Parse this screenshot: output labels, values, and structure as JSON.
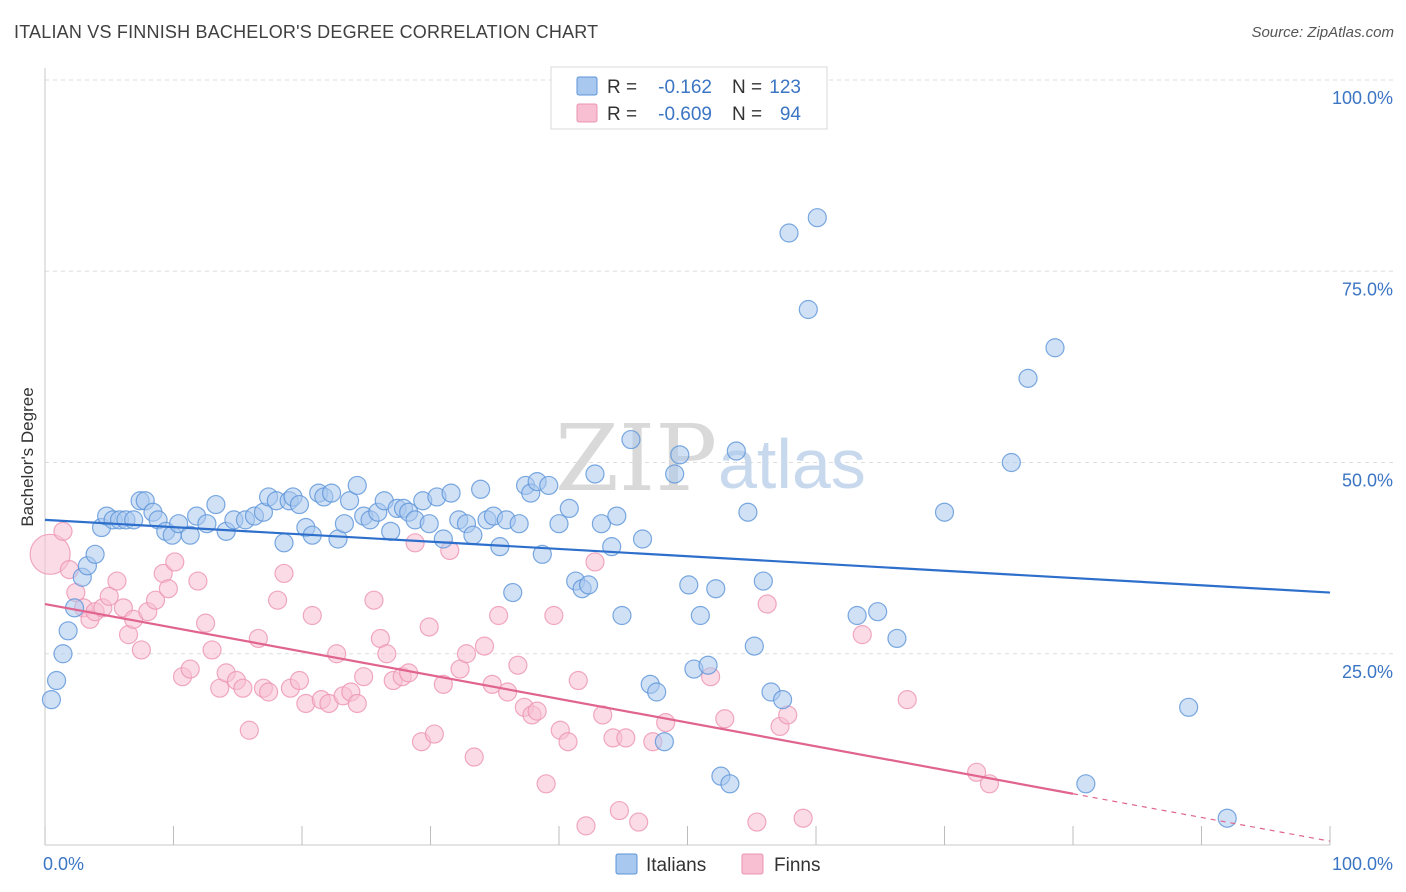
{
  "title": "ITALIAN VS FINNISH BACHELOR'S DEGREE CORRELATION CHART",
  "source": "Source: ZipAtlas.com",
  "watermark": {
    "zip": "ZIP",
    "atlas": "atlas"
  },
  "legend": {
    "rows": [
      {
        "r_label": "R =",
        "r_value": "-0.162",
        "n_label": "N =",
        "n_value": "123"
      },
      {
        "r_label": "R =",
        "r_value": "-0.609",
        "n_label": "N =",
        "n_value": "94"
      }
    ]
  },
  "bottom_legend": [
    "Italians",
    "Finns"
  ],
  "colors": {
    "italians_fill": "#a9c8ef",
    "italians_stroke": "#5b93d8",
    "italians_line": "#2e6fcc",
    "finns_fill": "#f7bfd1",
    "finns_stroke": "#ec93b2",
    "finns_line": "#e0648f",
    "grid": "#dddddd",
    "tick_label": "#3b75c4"
  },
  "chart_data": {
    "type": "scatter",
    "xlabel": "",
    "ylabel": "Bachelor's Degree",
    "xlim": [
      0,
      100
    ],
    "ylim": [
      0,
      100
    ],
    "x_tick_labels": [
      "0.0%",
      "100.0%"
    ],
    "y_tick_labels": [
      "100.0%",
      "75.0%",
      "50.0%",
      "25.0%"
    ],
    "y_ticks": [
      100,
      75,
      50,
      25
    ],
    "grid": true,
    "legend_position": "top-center",
    "series": [
      {
        "name": "Italians",
        "R": -0.162,
        "N": 123,
        "trend": {
          "x": [
            0,
            100
          ],
          "y": [
            42.5,
            33.0
          ],
          "dashed_from": null
        },
        "points": [
          [
            0.5,
            19
          ],
          [
            0.9,
            21.5
          ],
          [
            1.4,
            25
          ],
          [
            1.8,
            28
          ],
          [
            2.3,
            31
          ],
          [
            2.9,
            35
          ],
          [
            3.3,
            36.5
          ],
          [
            3.9,
            38
          ],
          [
            4.4,
            41.5
          ],
          [
            4.8,
            43
          ],
          [
            5.3,
            42.5
          ],
          [
            5.8,
            42.5
          ],
          [
            6.3,
            42.5
          ],
          [
            6.9,
            42.5
          ],
          [
            7.4,
            45
          ],
          [
            7.8,
            45
          ],
          [
            8.4,
            43.5
          ],
          [
            8.8,
            42.5
          ],
          [
            9.4,
            41
          ],
          [
            9.9,
            40.5
          ],
          [
            10.4,
            42
          ],
          [
            11.3,
            40.5
          ],
          [
            11.8,
            43
          ],
          [
            12.6,
            42
          ],
          [
            13.3,
            44.5
          ],
          [
            14.1,
            41
          ],
          [
            14.7,
            42.5
          ],
          [
            15.6,
            42.5
          ],
          [
            16.3,
            43
          ],
          [
            17.0,
            43.5
          ],
          [
            17.4,
            45.5
          ],
          [
            18.0,
            45
          ],
          [
            18.6,
            39.5
          ],
          [
            19.0,
            45
          ],
          [
            19.3,
            45.5
          ],
          [
            19.8,
            44.5
          ],
          [
            20.3,
            41.5
          ],
          [
            20.8,
            40.5
          ],
          [
            21.3,
            46
          ],
          [
            21.7,
            45.5
          ],
          [
            22.3,
            46
          ],
          [
            22.8,
            40
          ],
          [
            23.3,
            42
          ],
          [
            23.7,
            45
          ],
          [
            24.3,
            47
          ],
          [
            24.8,
            43
          ],
          [
            25.3,
            42.5
          ],
          [
            25.9,
            43.5
          ],
          [
            26.4,
            45
          ],
          [
            26.9,
            41
          ],
          [
            27.4,
            44
          ],
          [
            27.9,
            44
          ],
          [
            28.3,
            43.5
          ],
          [
            28.8,
            42.5
          ],
          [
            29.4,
            45
          ],
          [
            29.9,
            42
          ],
          [
            30.5,
            45.5
          ],
          [
            31.0,
            40
          ],
          [
            31.6,
            46
          ],
          [
            32.2,
            42.5
          ],
          [
            32.8,
            42
          ],
          [
            33.3,
            40.5
          ],
          [
            33.9,
            46.5
          ],
          [
            34.4,
            42.5
          ],
          [
            34.9,
            43
          ],
          [
            35.4,
            39
          ],
          [
            35.9,
            42.5
          ],
          [
            36.4,
            33
          ],
          [
            36.9,
            42
          ],
          [
            37.4,
            47
          ],
          [
            37.8,
            46
          ],
          [
            38.3,
            47.5
          ],
          [
            38.7,
            38
          ],
          [
            39.2,
            47
          ],
          [
            40.0,
            42
          ],
          [
            40.8,
            44
          ],
          [
            41.3,
            34.5
          ],
          [
            41.8,
            33.5
          ],
          [
            42.3,
            34
          ],
          [
            42.8,
            48.5
          ],
          [
            43.3,
            42
          ],
          [
            44.1,
            39
          ],
          [
            44.5,
            43
          ],
          [
            44.9,
            30
          ],
          [
            45.6,
            53
          ],
          [
            46.5,
            40
          ],
          [
            47.1,
            21
          ],
          [
            47.6,
            20
          ],
          [
            48.2,
            13.5
          ],
          [
            49.0,
            48.5
          ],
          [
            49.4,
            51
          ],
          [
            50.1,
            34
          ],
          [
            50.5,
            23
          ],
          [
            51.0,
            30
          ],
          [
            51.6,
            23.5
          ],
          [
            52.2,
            33.5
          ],
          [
            52.6,
            9
          ],
          [
            53.3,
            8
          ],
          [
            53.8,
            51.5
          ],
          [
            54.7,
            43.5
          ],
          [
            55.2,
            26
          ],
          [
            55.9,
            34.5
          ],
          [
            56.5,
            20
          ],
          [
            57.4,
            19
          ],
          [
            57.9,
            80
          ],
          [
            59.4,
            70
          ],
          [
            60.1,
            82
          ],
          [
            63.2,
            30
          ],
          [
            64.8,
            30.5
          ],
          [
            66.3,
            27
          ],
          [
            70.0,
            43.5
          ],
          [
            75.2,
            50
          ],
          [
            76.5,
            61
          ],
          [
            78.6,
            65
          ],
          [
            81.0,
            8
          ],
          [
            89.0,
            18
          ],
          [
            92.0,
            3.5
          ]
        ]
      },
      {
        "name": "Finns",
        "R": -0.609,
        "N": 94,
        "trend": {
          "x": [
            0,
            100
          ],
          "y": [
            31.5,
            0.5
          ],
          "dashed_from": 80
        },
        "points": [
          [
            0.4,
            38
          ],
          [
            1.4,
            41
          ],
          [
            1.9,
            36
          ],
          [
            2.4,
            33
          ],
          [
            3.0,
            31
          ],
          [
            3.5,
            29.5
          ],
          [
            3.9,
            30.5
          ],
          [
            4.5,
            31
          ],
          [
            5.0,
            32.5
          ],
          [
            5.6,
            34.5
          ],
          [
            6.1,
            31
          ],
          [
            6.5,
            27.5
          ],
          [
            6.9,
            29.5
          ],
          [
            7.5,
            25.5
          ],
          [
            8.0,
            30.5
          ],
          [
            8.6,
            32
          ],
          [
            9.2,
            35.5
          ],
          [
            9.6,
            33.5
          ],
          [
            10.1,
            37
          ],
          [
            10.7,
            22
          ],
          [
            11.3,
            23
          ],
          [
            11.9,
            34.5
          ],
          [
            12.5,
            29
          ],
          [
            13.0,
            25.5
          ],
          [
            13.6,
            20.5
          ],
          [
            14.1,
            22.5
          ],
          [
            14.9,
            21.5
          ],
          [
            15.4,
            20.5
          ],
          [
            15.9,
            15
          ],
          [
            16.6,
            27
          ],
          [
            17.0,
            20.5
          ],
          [
            17.4,
            20
          ],
          [
            18.1,
            32
          ],
          [
            18.6,
            35.5
          ],
          [
            19.1,
            20.5
          ],
          [
            19.8,
            21.5
          ],
          [
            20.3,
            18.5
          ],
          [
            20.8,
            30
          ],
          [
            21.5,
            19
          ],
          [
            22.1,
            18.5
          ],
          [
            22.7,
            25
          ],
          [
            23.2,
            19.5
          ],
          [
            23.8,
            20
          ],
          [
            24.3,
            18.5
          ],
          [
            24.8,
            22
          ],
          [
            25.6,
            32
          ],
          [
            26.1,
            27
          ],
          [
            26.6,
            25
          ],
          [
            27.1,
            21.5
          ],
          [
            27.8,
            22
          ],
          [
            28.3,
            22.5
          ],
          [
            28.8,
            39.5
          ],
          [
            29.3,
            13.5
          ],
          [
            29.9,
            28.5
          ],
          [
            30.3,
            14.5
          ],
          [
            31.0,
            21
          ],
          [
            31.5,
            38.5
          ],
          [
            32.3,
            23
          ],
          [
            32.8,
            25
          ],
          [
            33.4,
            11.5
          ],
          [
            34.2,
            26
          ],
          [
            34.8,
            21
          ],
          [
            35.3,
            30
          ],
          [
            36.0,
            20
          ],
          [
            36.8,
            23.5
          ],
          [
            37.3,
            18
          ],
          [
            37.9,
            17
          ],
          [
            38.3,
            17.5
          ],
          [
            39.0,
            8
          ],
          [
            39.6,
            30
          ],
          [
            40.1,
            15
          ],
          [
            40.7,
            13.5
          ],
          [
            41.5,
            21.5
          ],
          [
            42.1,
            2.5
          ],
          [
            42.8,
            37
          ],
          [
            43.4,
            17
          ],
          [
            44.2,
            14
          ],
          [
            44.7,
            4.5
          ],
          [
            45.2,
            14
          ],
          [
            46.2,
            3
          ],
          [
            47.3,
            13.5
          ],
          [
            48.3,
            16
          ],
          [
            51.8,
            22
          ],
          [
            52.9,
            16.5
          ],
          [
            55.4,
            3
          ],
          [
            56.2,
            31.5
          ],
          [
            57.2,
            15.5
          ],
          [
            57.8,
            17
          ],
          [
            59.0,
            3.5
          ],
          [
            63.6,
            27.5
          ],
          [
            67.1,
            19
          ],
          [
            72.5,
            9.5
          ],
          [
            73.5,
            8
          ]
        ]
      }
    ]
  }
}
